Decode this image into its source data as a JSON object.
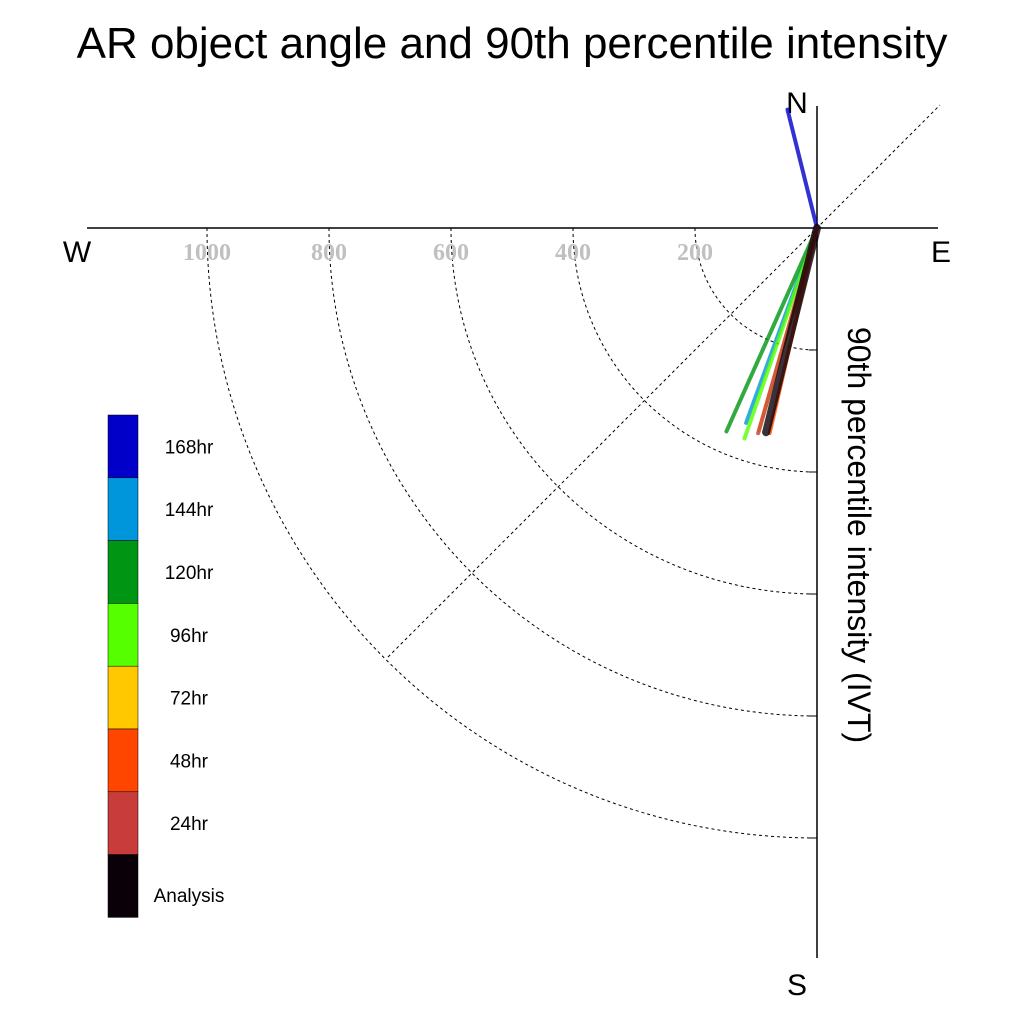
{
  "chart_data": {
    "type": "polar-line",
    "title": "AR object angle and 90th percentile intensity",
    "ylabel": "90th percentile intensity (IVT)",
    "compass": {
      "north": "N",
      "south": "S",
      "east": "E",
      "west": "W"
    },
    "radial_ticks": [
      200,
      400,
      600,
      800,
      1000
    ],
    "radial_tick_labels": [
      "200",
      "400",
      "600",
      "800",
      "1000"
    ],
    "radial_max": 1000,
    "angle_reference": "degrees clockwise from north",
    "series": [
      {
        "name": "168hr",
        "color": "#0000C8",
        "angle": 346,
        "intensity": 200
      },
      {
        "name": "144hr",
        "color": "#0096DC",
        "angle": 200,
        "intensity": 340
      },
      {
        "name": "120hr",
        "color": "#009614",
        "angle": 204,
        "intensity": 365
      },
      {
        "name": "96hr",
        "color": "#55FF00",
        "angle": 199,
        "intensity": 365
      },
      {
        "name": "72hr",
        "color": "#FFC800",
        "angle": 196,
        "intensity": 345
      },
      {
        "name": "48hr",
        "color": "#FF4600",
        "angle": 193,
        "intensity": 345
      },
      {
        "name": "24hr",
        "color": "#C83C3C",
        "angle": 196,
        "intensity": 350
      },
      {
        "name": "Analysis",
        "color": "#0A0008",
        "angle": 194,
        "intensity": 345
      }
    ],
    "legend": [
      "168hr",
      "144hr",
      "120hr",
      "96hr",
      "72hr",
      "48hr",
      "24hr",
      "Analysis"
    ]
  }
}
